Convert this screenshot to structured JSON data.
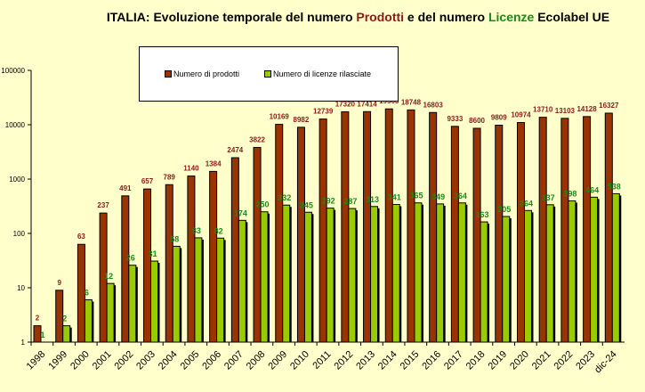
{
  "title": {
    "part1": "ITALIA: Evoluzione temporale del numero ",
    "prodotti": "Prodotti",
    "part2": " e del numero  ",
    "licenze": "Licenze",
    "part3": " Ecolabel UE"
  },
  "colors": {
    "prodotti": "#993300",
    "licenze": "#99cc00",
    "prodotti_label": "#8b1a1a",
    "licenze_label": "#1a8a1a",
    "background": "#ffffcc"
  },
  "chart_data": {
    "type": "bar",
    "yscale": "log",
    "ylim": [
      1,
      100000
    ],
    "yticks": [
      "1",
      "10",
      "100",
      "1000",
      "10000",
      "100000"
    ],
    "legend": "top-center",
    "categories": [
      "1998",
      "1999",
      "2000",
      "2001",
      "2002",
      "2003",
      "2004",
      "2005",
      "2006",
      "2007",
      "2008",
      "2009",
      "2010",
      "2011",
      "2012",
      "2013",
      "2014",
      "2015",
      "2016",
      "2017",
      "2018",
      "2019",
      "2020",
      "2021",
      "2022",
      "2023",
      "dic-24"
    ],
    "series": [
      {
        "name": "Numero di prodotti",
        "values": [
          2,
          9,
          63,
          237,
          491,
          657,
          789,
          1140,
          1384,
          2474,
          3822,
          10169,
          8982,
          12739,
          17320,
          17414,
          19563,
          18748,
          16803,
          9333,
          8600,
          9809,
          10974,
          13710,
          13103,
          14128,
          16327
        ]
      },
      {
        "name": "Numero di licenze rilasciate",
        "values": [
          1,
          2,
          6,
          12,
          26,
          31,
          58,
          83,
          82,
          174,
          250,
          332,
          245,
          292,
          287,
          313,
          341,
          365,
          349,
          364,
          163,
          205,
          264,
          337,
          398,
          464,
          538
        ]
      }
    ]
  }
}
